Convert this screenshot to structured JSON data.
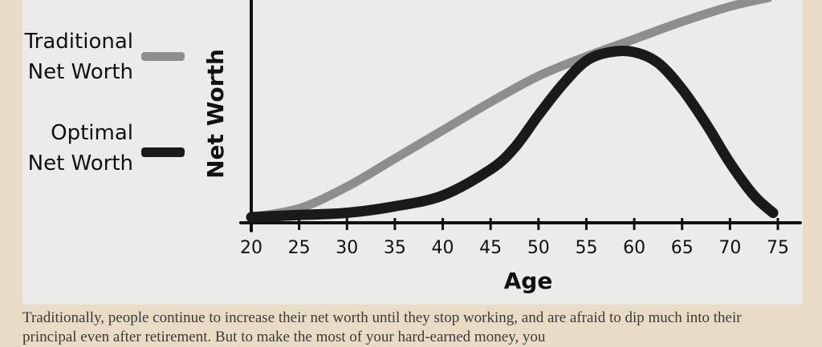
{
  "chart_data": {
    "type": "line",
    "xlabel": "Age",
    "ylabel": "Net Worth",
    "xlim": [
      20,
      75
    ],
    "ticks": [
      20,
      25,
      30,
      35,
      40,
      45,
      50,
      55,
      60,
      65,
      70,
      75
    ],
    "legend_position": "left",
    "series": [
      {
        "name": "Traditional Net Worth",
        "legend_lines": [
          "Traditional",
          "Net Worth"
        ],
        "color": "#8e8e8e",
        "x": [
          20,
          25,
          30,
          35,
          40,
          45,
          50,
          55,
          60,
          65,
          70,
          74
        ],
        "y": [
          0.0,
          0.04,
          0.14,
          0.27,
          0.4,
          0.53,
          0.65,
          0.74,
          0.82,
          0.9,
          0.97,
          1.01
        ]
      },
      {
        "name": "Optimal Net Worth",
        "legend_lines": [
          "Optimal",
          "Net Worth"
        ],
        "color": "#1a1a1a",
        "x": [
          20,
          25,
          30,
          35,
          40,
          45,
          47.5,
          50,
          52.5,
          55,
          57.5,
          60,
          62.5,
          65,
          67.5,
          70,
          72.5,
          74.5
        ],
        "y": [
          0.0,
          0.01,
          0.02,
          0.05,
          0.1,
          0.22,
          0.32,
          0.47,
          0.61,
          0.72,
          0.76,
          0.76,
          0.71,
          0.59,
          0.43,
          0.25,
          0.1,
          0.02
        ]
      }
    ]
  },
  "caption": "Traditionally, people continue to increase their net worth until they stop working, and are afraid to dip much into their principal even after retirement. But to make the most of your hard-earned money, you"
}
